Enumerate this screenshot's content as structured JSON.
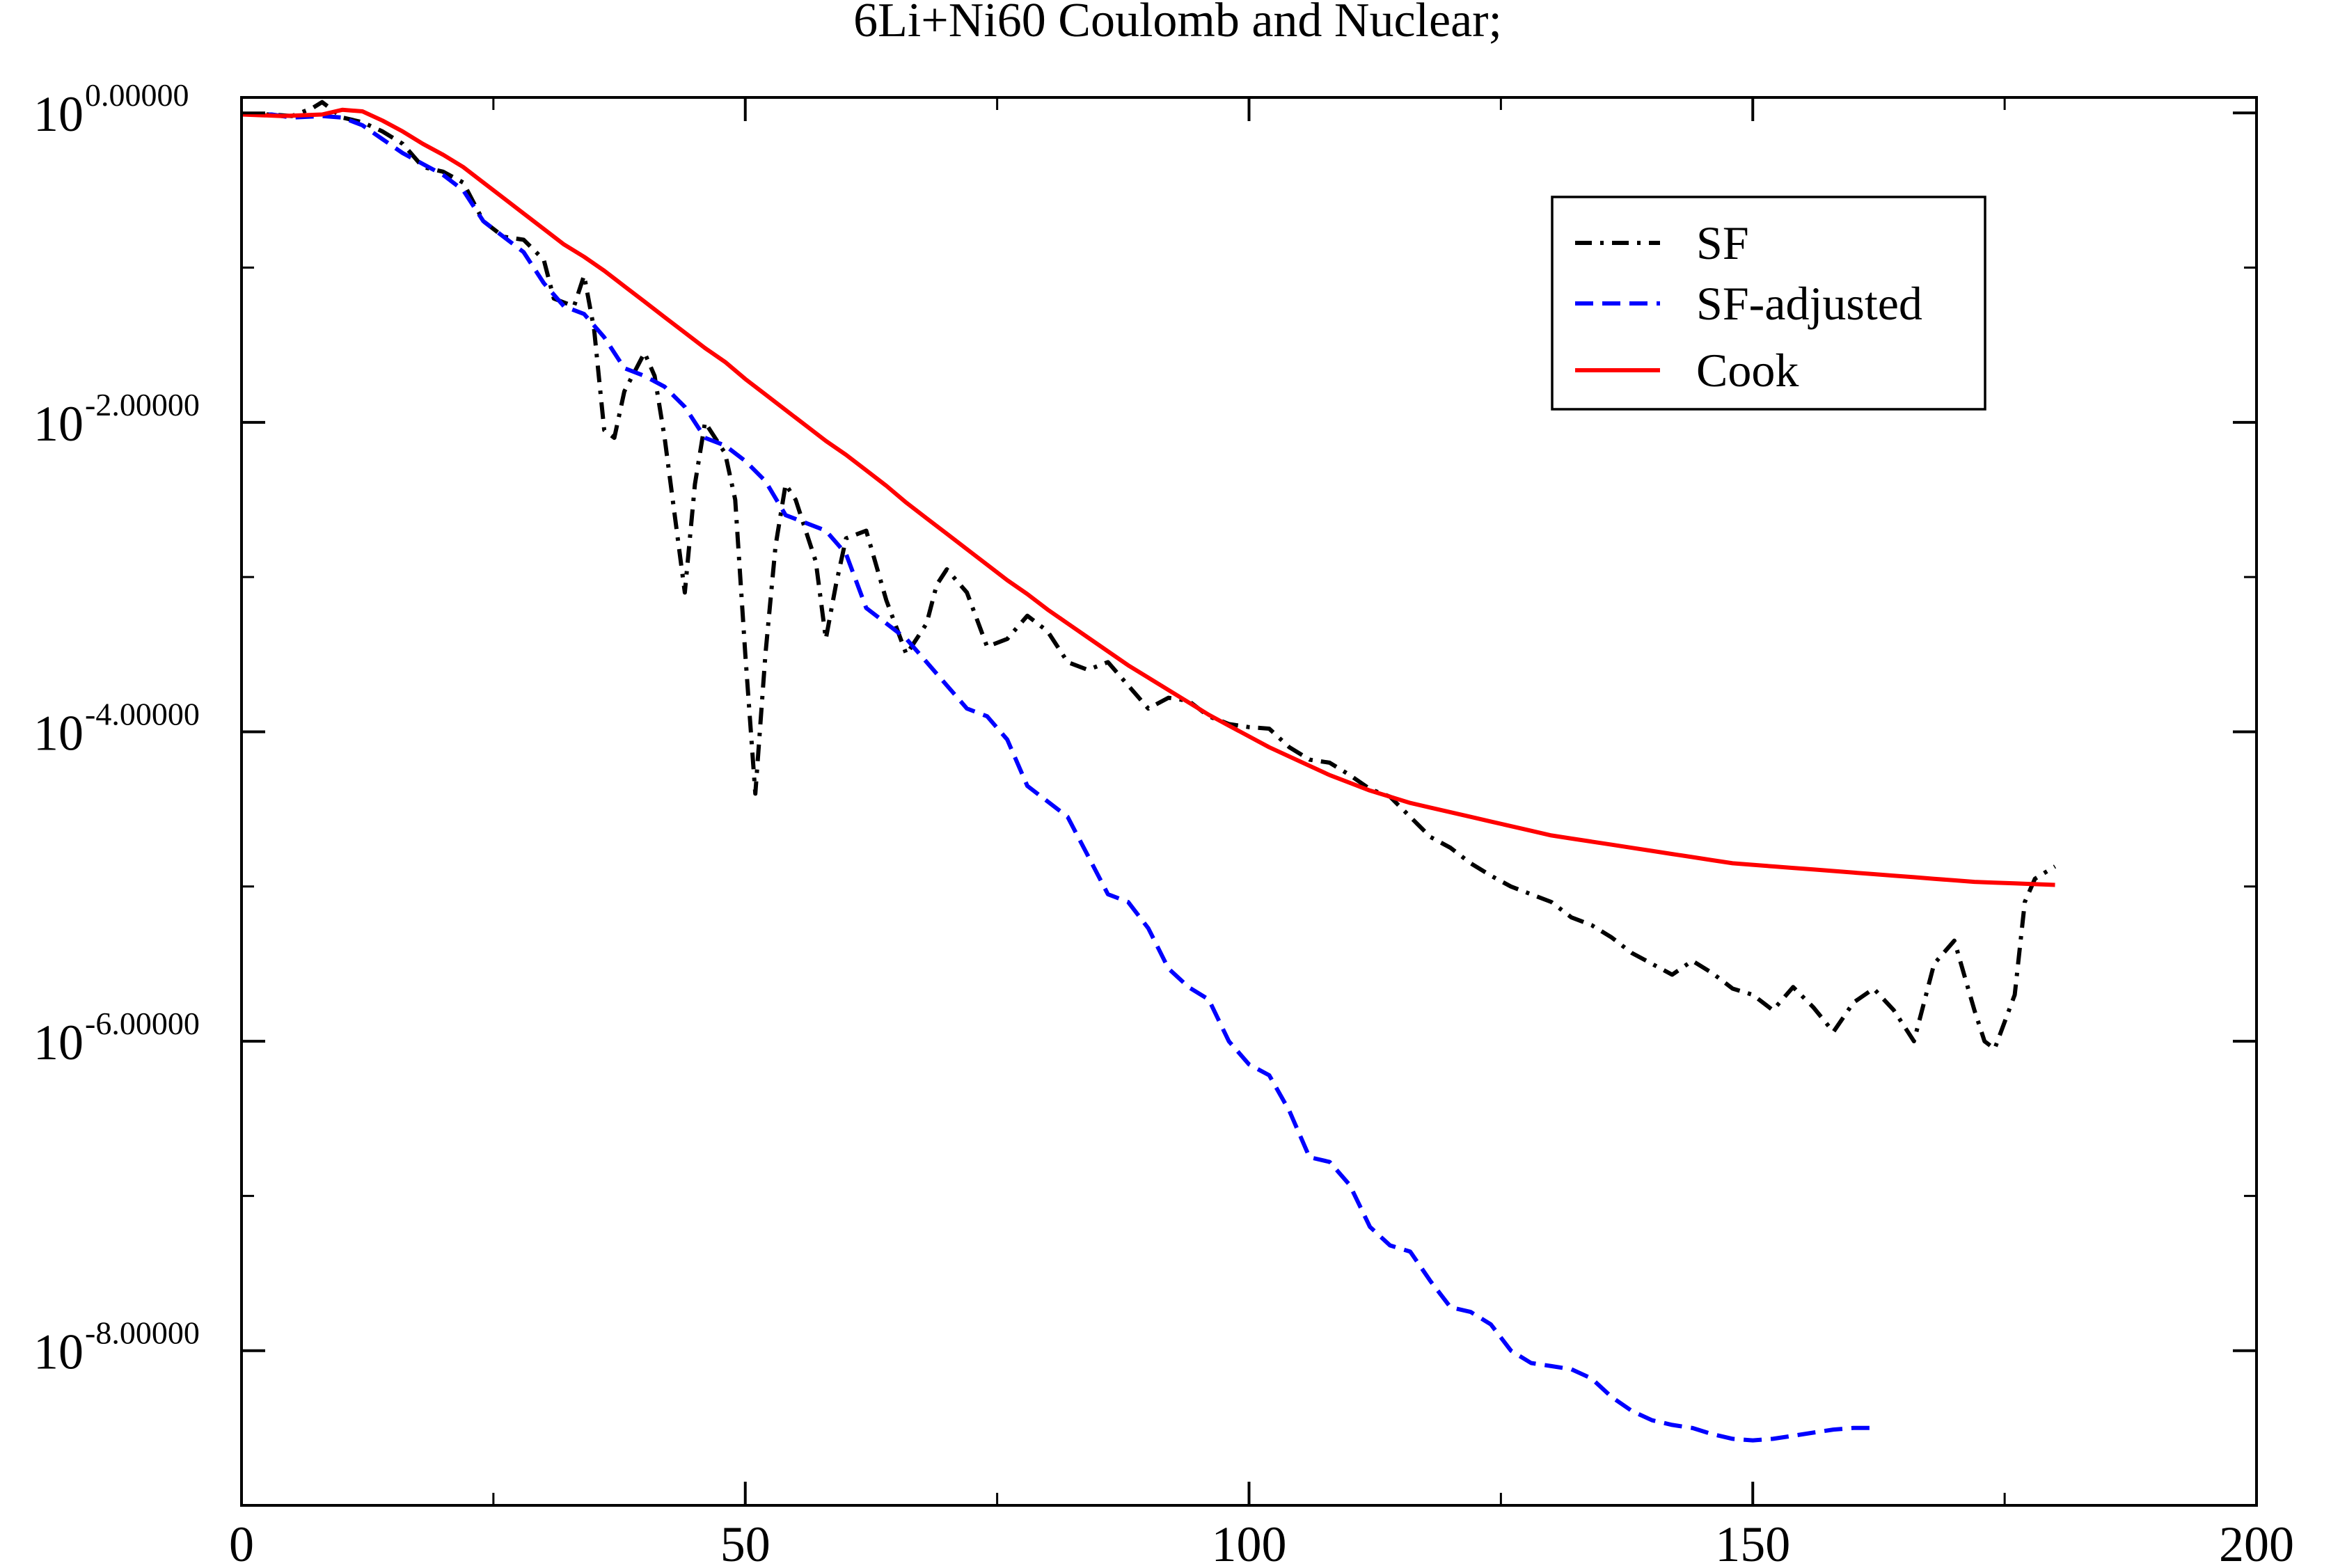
{
  "chart_data": {
    "type": "line",
    "title": "6Li+Ni60 Coulomb and Nuclear;",
    "xlabel": "",
    "ylabel": "",
    "xlim": [
      0,
      200
    ],
    "ylim_log10": [
      -9,
      0.1
    ],
    "yscale": "log",
    "grid": false,
    "legend_position": "top-right",
    "x_ticks": [
      {
        "value": 0,
        "label": "0"
      },
      {
        "value": 50,
        "label": "50"
      },
      {
        "value": 100,
        "label": "100"
      },
      {
        "value": 150,
        "label": "150"
      },
      {
        "value": 200,
        "label": "200"
      }
    ],
    "y_ticks": [
      {
        "value": 0,
        "base": "10",
        "exponent": "0.00000"
      },
      {
        "value": -2,
        "base": "10",
        "exponent": "-2.00000"
      },
      {
        "value": -4,
        "base": "10",
        "exponent": "-4.00000"
      },
      {
        "value": -6,
        "base": "10",
        "exponent": "-6.00000"
      },
      {
        "value": -8,
        "base": "10",
        "exponent": "-8.00000"
      }
    ],
    "series": [
      {
        "name": "SF",
        "color": "#000000",
        "dash": "dash-dot",
        "points": [
          [
            0,
            -0.01
          ],
          [
            3,
            -0.01
          ],
          [
            5,
            -0.02
          ],
          [
            7,
            0.03
          ],
          [
            8,
            0.07
          ],
          [
            10,
            -0.03
          ],
          [
            12,
            -0.06
          ],
          [
            14,
            -0.12
          ],
          [
            16,
            -0.2
          ],
          [
            18,
            -0.35
          ],
          [
            20,
            -0.38
          ],
          [
            22,
            -0.45
          ],
          [
            24,
            -0.7
          ],
          [
            26,
            -0.8
          ],
          [
            28,
            -0.82
          ],
          [
            30,
            -0.95
          ],
          [
            31,
            -1.2
          ],
          [
            33,
            -1.25
          ],
          [
            34,
            -1.05
          ],
          [
            35,
            -1.4
          ],
          [
            36,
            -2.05
          ],
          [
            37,
            -2.1
          ],
          [
            38,
            -1.8
          ],
          [
            40,
            -1.55
          ],
          [
            41,
            -1.7
          ],
          [
            42,
            -2.1
          ],
          [
            44,
            -3.1
          ],
          [
            45,
            -2.4
          ],
          [
            46,
            -2.0
          ],
          [
            48,
            -2.2
          ],
          [
            49,
            -2.5
          ],
          [
            50,
            -3.5
          ],
          [
            51,
            -4.4
          ],
          [
            52,
            -3.5
          ],
          [
            53,
            -2.8
          ],
          [
            54,
            -2.4
          ],
          [
            55,
            -2.5
          ],
          [
            57,
            -2.9
          ],
          [
            58,
            -3.4
          ],
          [
            59,
            -3.05
          ],
          [
            60,
            -2.75
          ],
          [
            62,
            -2.7
          ],
          [
            64,
            -3.15
          ],
          [
            66,
            -3.5
          ],
          [
            68,
            -3.3
          ],
          [
            69,
            -3.05
          ],
          [
            70,
            -2.95
          ],
          [
            72,
            -3.1
          ],
          [
            74,
            -3.45
          ],
          [
            76,
            -3.4
          ],
          [
            78,
            -3.25
          ],
          [
            80,
            -3.35
          ],
          [
            82,
            -3.55
          ],
          [
            84,
            -3.6
          ],
          [
            86,
            -3.55
          ],
          [
            88,
            -3.7
          ],
          [
            90,
            -3.85
          ],
          [
            92,
            -3.78
          ],
          [
            94,
            -3.8
          ],
          [
            96,
            -3.9
          ],
          [
            98,
            -3.95
          ],
          [
            100,
            -3.97
          ],
          [
            102,
            -3.98
          ],
          [
            104,
            -4.1
          ],
          [
            106,
            -4.18
          ],
          [
            108,
            -4.2
          ],
          [
            110,
            -4.28
          ],
          [
            112,
            -4.37
          ],
          [
            114,
            -4.42
          ],
          [
            116,
            -4.55
          ],
          [
            118,
            -4.68
          ],
          [
            120,
            -4.75
          ],
          [
            122,
            -4.85
          ],
          [
            124,
            -4.93
          ],
          [
            126,
            -5.0
          ],
          [
            128,
            -5.05
          ],
          [
            130,
            -5.1
          ],
          [
            132,
            -5.2
          ],
          [
            134,
            -5.25
          ],
          [
            136,
            -5.33
          ],
          [
            138,
            -5.43
          ],
          [
            140,
            -5.5
          ],
          [
            142,
            -5.57
          ],
          [
            144,
            -5.48
          ],
          [
            146,
            -5.56
          ],
          [
            148,
            -5.66
          ],
          [
            150,
            -5.7
          ],
          [
            152,
            -5.8
          ],
          [
            154,
            -5.65
          ],
          [
            156,
            -5.78
          ],
          [
            158,
            -5.94
          ],
          [
            160,
            -5.75
          ],
          [
            162,
            -5.66
          ],
          [
            164,
            -5.8
          ],
          [
            166,
            -6.0
          ],
          [
            168,
            -5.5
          ],
          [
            170,
            -5.35
          ],
          [
            172,
            -5.8
          ],
          [
            173,
            -6.0
          ],
          [
            174,
            -6.05
          ],
          [
            176,
            -5.7
          ],
          [
            177,
            -5.1
          ],
          [
            178,
            -4.95
          ],
          [
            180,
            -4.87
          ]
        ]
      },
      {
        "name": "SF-adjusted",
        "color": "#0000ff",
        "dash": "dashed",
        "points": [
          [
            0,
            -0.01
          ],
          [
            3,
            -0.01
          ],
          [
            5,
            -0.03
          ],
          [
            8,
            -0.02
          ],
          [
            10,
            -0.03
          ],
          [
            12,
            -0.08
          ],
          [
            14,
            -0.17
          ],
          [
            16,
            -0.26
          ],
          [
            18,
            -0.33
          ],
          [
            20,
            -0.4
          ],
          [
            22,
            -0.5
          ],
          [
            24,
            -0.7
          ],
          [
            26,
            -0.8
          ],
          [
            28,
            -0.9
          ],
          [
            30,
            -1.1
          ],
          [
            32,
            -1.25
          ],
          [
            34,
            -1.3
          ],
          [
            36,
            -1.45
          ],
          [
            38,
            -1.65
          ],
          [
            40,
            -1.7
          ],
          [
            42,
            -1.77
          ],
          [
            44,
            -1.9
          ],
          [
            46,
            -2.1
          ],
          [
            48,
            -2.15
          ],
          [
            50,
            -2.25
          ],
          [
            52,
            -2.38
          ],
          [
            54,
            -2.6
          ],
          [
            56,
            -2.65
          ],
          [
            58,
            -2.7
          ],
          [
            60,
            -2.85
          ],
          [
            62,
            -3.2
          ],
          [
            64,
            -3.3
          ],
          [
            66,
            -3.4
          ],
          [
            68,
            -3.55
          ],
          [
            70,
            -3.7
          ],
          [
            72,
            -3.85
          ],
          [
            74,
            -3.9
          ],
          [
            76,
            -4.05
          ],
          [
            78,
            -4.35
          ],
          [
            80,
            -4.45
          ],
          [
            82,
            -4.55
          ],
          [
            84,
            -4.8
          ],
          [
            86,
            -5.05
          ],
          [
            88,
            -5.1
          ],
          [
            90,
            -5.27
          ],
          [
            92,
            -5.53
          ],
          [
            94,
            -5.65
          ],
          [
            96,
            -5.73
          ],
          [
            98,
            -6.0
          ],
          [
            100,
            -6.15
          ],
          [
            102,
            -6.22
          ],
          [
            104,
            -6.45
          ],
          [
            106,
            -6.75
          ],
          [
            108,
            -6.78
          ],
          [
            110,
            -6.93
          ],
          [
            112,
            -7.2
          ],
          [
            114,
            -7.32
          ],
          [
            116,
            -7.36
          ],
          [
            118,
            -7.55
          ],
          [
            120,
            -7.72
          ],
          [
            122,
            -7.75
          ],
          [
            124,
            -7.83
          ],
          [
            126,
            -8.0
          ],
          [
            128,
            -8.08
          ],
          [
            130,
            -8.1
          ],
          [
            132,
            -8.12
          ],
          [
            134,
            -8.18
          ],
          [
            136,
            -8.3
          ],
          [
            138,
            -8.39
          ],
          [
            140,
            -8.45
          ],
          [
            142,
            -8.48
          ],
          [
            144,
            -8.5
          ],
          [
            146,
            -8.54
          ],
          [
            148,
            -8.57
          ],
          [
            150,
            -8.58
          ],
          [
            152,
            -8.57
          ],
          [
            154,
            -8.55
          ],
          [
            156,
            -8.53
          ],
          [
            158,
            -8.51
          ],
          [
            160,
            -8.5
          ],
          [
            162,
            -8.5
          ]
        ]
      },
      {
        "name": "Cook",
        "color": "#ff0000",
        "dash": "solid",
        "points": [
          [
            0,
            -0.01
          ],
          [
            4,
            -0.02
          ],
          [
            8,
            -0.01
          ],
          [
            10,
            0.02
          ],
          [
            12,
            0.01
          ],
          [
            14,
            -0.05
          ],
          [
            16,
            -0.12
          ],
          [
            18,
            -0.2
          ],
          [
            20,
            -0.27
          ],
          [
            22,
            -0.35
          ],
          [
            24,
            -0.45
          ],
          [
            26,
            -0.55
          ],
          [
            28,
            -0.65
          ],
          [
            30,
            -0.75
          ],
          [
            32,
            -0.85
          ],
          [
            34,
            -0.93
          ],
          [
            36,
            -1.02
          ],
          [
            38,
            -1.12
          ],
          [
            40,
            -1.22
          ],
          [
            42,
            -1.32
          ],
          [
            44,
            -1.42
          ],
          [
            46,
            -1.52
          ],
          [
            48,
            -1.61
          ],
          [
            50,
            -1.72
          ],
          [
            52,
            -1.82
          ],
          [
            54,
            -1.92
          ],
          [
            56,
            -2.02
          ],
          [
            58,
            -2.12
          ],
          [
            60,
            -2.21
          ],
          [
            62,
            -2.31
          ],
          [
            64,
            -2.41
          ],
          [
            66,
            -2.52
          ],
          [
            68,
            -2.62
          ],
          [
            70,
            -2.72
          ],
          [
            72,
            -2.82
          ],
          [
            74,
            -2.92
          ],
          [
            76,
            -3.02
          ],
          [
            78,
            -3.11
          ],
          [
            80,
            -3.21
          ],
          [
            82,
            -3.3
          ],
          [
            84,
            -3.39
          ],
          [
            86,
            -3.48
          ],
          [
            88,
            -3.57
          ],
          [
            90,
            -3.65
          ],
          [
            92,
            -3.73
          ],
          [
            94,
            -3.81
          ],
          [
            96,
            -3.89
          ],
          [
            98,
            -3.96
          ],
          [
            100,
            -4.03
          ],
          [
            102,
            -4.1
          ],
          [
            104,
            -4.16
          ],
          [
            106,
            -4.22
          ],
          [
            108,
            -4.28
          ],
          [
            110,
            -4.33
          ],
          [
            112,
            -4.38
          ],
          [
            114,
            -4.42
          ],
          [
            116,
            -4.46
          ],
          [
            118,
            -4.49
          ],
          [
            120,
            -4.52
          ],
          [
            122,
            -4.55
          ],
          [
            124,
            -4.58
          ],
          [
            126,
            -4.61
          ],
          [
            128,
            -4.64
          ],
          [
            130,
            -4.67
          ],
          [
            132,
            -4.69
          ],
          [
            134,
            -4.71
          ],
          [
            136,
            -4.73
          ],
          [
            138,
            -4.75
          ],
          [
            140,
            -4.77
          ],
          [
            142,
            -4.79
          ],
          [
            144,
            -4.81
          ],
          [
            146,
            -4.83
          ],
          [
            148,
            -4.85
          ],
          [
            150,
            -4.86
          ],
          [
            152,
            -4.87
          ],
          [
            154,
            -4.88
          ],
          [
            156,
            -4.89
          ],
          [
            158,
            -4.9
          ],
          [
            160,
            -4.91
          ],
          [
            162,
            -4.92
          ],
          [
            164,
            -4.93
          ],
          [
            166,
            -4.94
          ],
          [
            168,
            -4.95
          ],
          [
            170,
            -4.96
          ],
          [
            172,
            -4.97
          ],
          [
            174,
            -4.975
          ],
          [
            176,
            -4.98
          ],
          [
            178,
            -4.985
          ],
          [
            180,
            -4.99
          ]
        ]
      }
    ]
  }
}
